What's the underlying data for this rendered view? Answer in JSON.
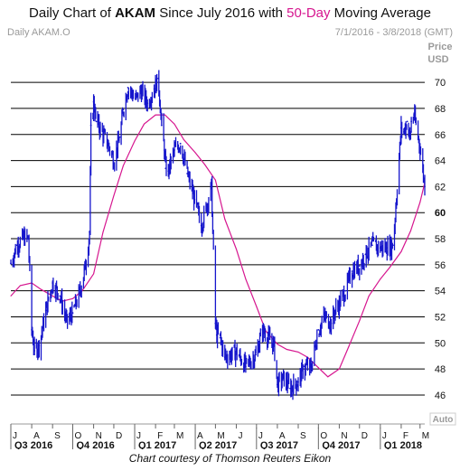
{
  "title": {
    "prefix": "Daily Chart of ",
    "ticker": "AKAM",
    "middle": " Since July 2016 with ",
    "ma": "50-Day",
    "suffix": " Moving Average"
  },
  "subtitle_left": "Daily AKAM.O",
  "subtitle_right": "7/1/2016 - 3/8/2018 (GMT)",
  "y_axis_label_1": "Price",
  "y_axis_label_2": "USD",
  "auto_label": "Auto",
  "footer": "Chart courtesy of Thomson Reuters Eikon",
  "colors": {
    "price": "#1515cc",
    "moving_average": "#d6168f",
    "grid": "#000000"
  },
  "chart_data": {
    "type": "line",
    "title": "Daily Chart of AKAM Since July 2016 with 50-Day Moving Average",
    "ylabel": "Price USD",
    "ylim": [
      44.4,
      73.2
    ],
    "yticks": [
      46,
      48,
      50,
      52,
      54,
      56,
      58,
      60,
      62,
      64,
      66,
      68,
      70
    ],
    "highlighted_ytick": 60,
    "grid": true,
    "x_range": [
      "2016-07-01",
      "2018-03-08"
    ],
    "month_ticks": [
      "J",
      "A",
      "S",
      "O",
      "N",
      "D",
      "J",
      "F",
      "M",
      "A",
      "M",
      "J",
      "J",
      "A",
      "S",
      "O",
      "N",
      "D",
      "J",
      "F",
      "M"
    ],
    "quarters": [
      "Q3 2016",
      "Q4 2016",
      "Q1 2017",
      "Q2 2017",
      "Q3 2017",
      "Q4 2017",
      "Q1 2018"
    ],
    "series": [
      {
        "name": "AKAM",
        "style": "daily high-low",
        "x": [
          "2016-07-01",
          "2016-07-10",
          "2016-07-20",
          "2016-07-27",
          "2016-08-01",
          "2016-08-05",
          "2016-08-12",
          "2016-08-22",
          "2016-09-01",
          "2016-09-12",
          "2016-09-22",
          "2016-10-01",
          "2016-10-12",
          "2016-10-20",
          "2016-10-26",
          "2016-10-28",
          "2016-11-01",
          "2016-11-05",
          "2016-11-15",
          "2016-11-22",
          "2016-12-01",
          "2016-12-10",
          "2016-12-15",
          "2016-12-22",
          "2017-01-03",
          "2017-01-10",
          "2017-01-20",
          "2017-01-30",
          "2017-02-05",
          "2017-02-10",
          "2017-02-14",
          "2017-02-16",
          "2017-02-20",
          "2017-03-01",
          "2017-03-10",
          "2017-03-20",
          "2017-03-31",
          "2017-04-10",
          "2017-04-18",
          "2017-04-25",
          "2017-05-01",
          "2017-05-03",
          "2017-05-08",
          "2017-05-15",
          "2017-06-01",
          "2017-06-15",
          "2017-06-30",
          "2017-07-10",
          "2017-07-20",
          "2017-07-27",
          "2017-08-01",
          "2017-08-10",
          "2017-08-20",
          "2017-09-01",
          "2017-09-10",
          "2017-09-20",
          "2017-10-01",
          "2017-10-10",
          "2017-10-20",
          "2017-10-26",
          "2017-11-01",
          "2017-11-10",
          "2017-11-20",
          "2017-12-01",
          "2017-12-10",
          "2017-12-20",
          "2018-01-01",
          "2018-01-10",
          "2018-01-20",
          "2018-02-01",
          "2018-02-05",
          "2018-02-10",
          "2018-02-14",
          "2018-02-16",
          "2018-02-20",
          "2018-03-01",
          "2018-03-08"
        ],
        "values": [
          56.1,
          57.5,
          58.1,
          58.0,
          51.0,
          49.4,
          49.8,
          52.5,
          54.6,
          53.6,
          51.6,
          52.3,
          54.0,
          56.0,
          58.5,
          66.7,
          68.5,
          67.0,
          66.0,
          65.3,
          64.0,
          65.8,
          67.9,
          69.6,
          68.7,
          69.4,
          68.4,
          69.5,
          70.3,
          66.7,
          64.8,
          63.4,
          63.2,
          64.8,
          65.3,
          63.0,
          61.0,
          59.0,
          60.5,
          62.0,
          51.5,
          50.6,
          50.4,
          48.9,
          49.3,
          48.2,
          49.1,
          51.0,
          50.3,
          49.8,
          46.8,
          47.3,
          46.5,
          47.0,
          48.2,
          48.1,
          51.0,
          52.0,
          51.5,
          52.5,
          53.0,
          54.0,
          55.5,
          55.9,
          56.8,
          57.5,
          57.3,
          57.3,
          57.5,
          66.5,
          66.2,
          67.0,
          65.6,
          67.0,
          67.5,
          65.0,
          62.0
        ]
      },
      {
        "name": "50-Day",
        "x": [
          "2016-07-01",
          "2016-07-15",
          "2016-08-01",
          "2016-08-15",
          "2016-09-01",
          "2016-09-15",
          "2016-10-01",
          "2016-10-15",
          "2016-11-01",
          "2016-11-15",
          "2016-12-01",
          "2016-12-15",
          "2017-01-01",
          "2017-01-15",
          "2017-02-01",
          "2017-02-15",
          "2017-03-01",
          "2017-03-15",
          "2017-04-01",
          "2017-04-15",
          "2017-05-01",
          "2017-05-15",
          "2017-06-01",
          "2017-06-15",
          "2017-07-01",
          "2017-07-15",
          "2017-08-01",
          "2017-08-15",
          "2017-09-01",
          "2017-09-15",
          "2017-10-01",
          "2017-10-15",
          "2017-11-01",
          "2017-11-15",
          "2017-12-01",
          "2017-12-15",
          "2018-01-01",
          "2018-01-15",
          "2018-02-01",
          "2018-02-15",
          "2018-03-01",
          "2018-03-08"
        ],
        "values": [
          53.6,
          54.4,
          54.6,
          54.1,
          53.6,
          53.2,
          53.4,
          54.0,
          55.3,
          58.5,
          61.3,
          63.6,
          65.5,
          66.8,
          67.5,
          67.5,
          66.8,
          65.6,
          64.6,
          63.7,
          62.5,
          59.5,
          57.2,
          54.9,
          52.8,
          50.9,
          49.9,
          49.5,
          49.3,
          48.9,
          48.1,
          47.4,
          48.0,
          49.7,
          51.7,
          53.6,
          54.9,
          55.8,
          57.0,
          58.6,
          60.8,
          62.3
        ]
      }
    ]
  }
}
